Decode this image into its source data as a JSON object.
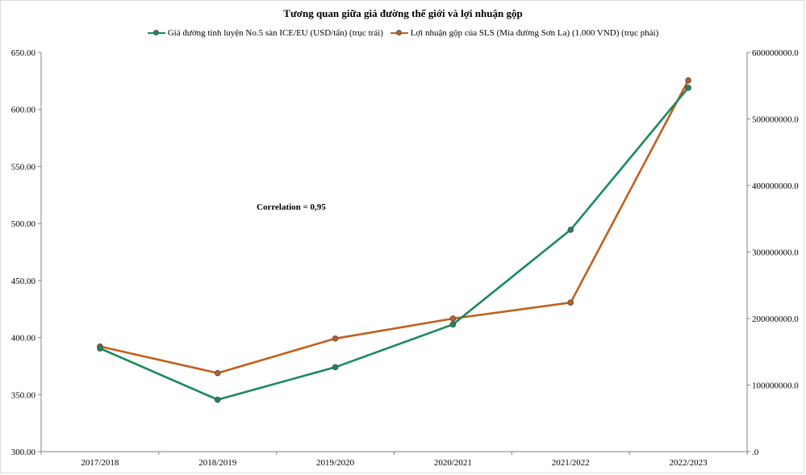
{
  "chart_data": {
    "type": "line",
    "title": "Tương quan giữa giá đường thế giới và lợi nhuận gộp",
    "categories": [
      "2017/2018",
      "2018/2019",
      "2019/2020",
      "2020/2021",
      "2021/2022",
      "2022/2023"
    ],
    "series": [
      {
        "name": "Giá đường tinh luyện No.5 sàn ICE/EU (USD/tấn) (trục trái)",
        "axis": "left",
        "color": "#1a8a5a",
        "values": [
          390.5,
          345.5,
          374.0,
          411.5,
          494.5,
          619.0
        ]
      },
      {
        "name": "Lợi nhuận gộp của SLS (Mía đường Sơn La) (1.000 VND) (trục phải)",
        "axis": "right",
        "color": "#c0601e",
        "values": [
          158000000,
          118000000,
          170000000,
          200000000,
          224000000,
          558000000
        ]
      }
    ],
    "y_left": {
      "ylim": [
        300,
        650
      ],
      "ticks": [
        300,
        350,
        400,
        450,
        500,
        550,
        600,
        650
      ],
      "tick_labels": [
        "300.00",
        "350.00",
        "400.00",
        "450.00",
        "500.00",
        "550.00",
        "600.00",
        "650.00"
      ]
    },
    "y_right": {
      "ylim": [
        0,
        600000000
      ],
      "ticks": [
        0,
        100000000,
        200000000,
        300000000,
        400000000,
        500000000,
        600000000
      ],
      "tick_labels": [
        ".0",
        "100000000.0",
        "200000000.0",
        "300000000.0",
        "400000000.0",
        "500000000.0",
        "600000000.0"
      ]
    },
    "annotation": "Correlation = 0,95",
    "grid": false,
    "legend_position": "top"
  }
}
